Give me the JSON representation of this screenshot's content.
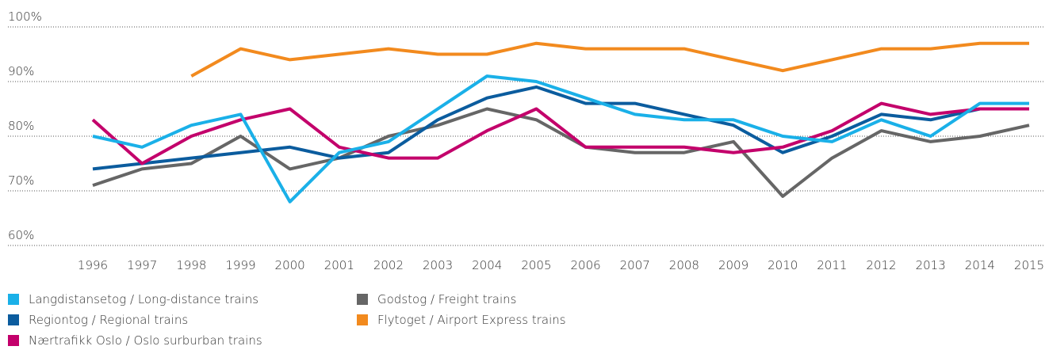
{
  "chart_data": {
    "type": "line",
    "x": [
      "1996",
      "1997",
      "1998",
      "1999",
      "2000",
      "2001",
      "2002",
      "2003",
      "2004",
      "2005",
      "2006",
      "2007",
      "2008",
      "2009",
      "2010",
      "2011",
      "2012",
      "2013",
      "2014",
      "2015"
    ],
    "series": [
      {
        "name": "Langdistansetog / Long-distance trains",
        "color": "#1ab0e8",
        "values": [
          80,
          78,
          82,
          84,
          68,
          77,
          79,
          85,
          91,
          90,
          87,
          84,
          83,
          83,
          80,
          79,
          83,
          80,
          86,
          86
        ]
      },
      {
        "name": "Regiontog / Regional trains",
        "color": "#0b5c9e",
        "values": [
          74,
          75,
          76,
          77,
          78,
          76,
          77,
          83,
          87,
          89,
          86,
          86,
          84,
          82,
          77,
          80,
          84,
          83,
          85,
          85
        ]
      },
      {
        "name": "Nærtrafikk Oslo / Oslo surburban trains",
        "color": "#c3006b",
        "values": [
          83,
          75,
          80,
          83,
          85,
          78,
          76,
          76,
          81,
          85,
          78,
          78,
          78,
          77,
          78,
          81,
          86,
          84,
          85,
          85
        ]
      },
      {
        "name": "Godstog / Freight trains",
        "color": "#666666",
        "values": [
          71,
          74,
          75,
          80,
          74,
          76,
          80,
          82,
          85,
          83,
          78,
          77,
          77,
          79,
          69,
          76,
          81,
          79,
          80,
          82
        ]
      },
      {
        "name": "Flytoget / Airport Express trains",
        "color": "#f28a1e",
        "values": [
          null,
          null,
          91,
          96,
          94,
          95,
          96,
          95,
          95,
          97,
          96,
          96,
          96,
          94,
          92,
          94,
          96,
          96,
          97,
          97
        ]
      }
    ],
    "ylim": [
      60,
      100
    ],
    "yticks": [
      {
        "value": 60,
        "label": "60%"
      },
      {
        "value": 70,
        "label": "70%"
      },
      {
        "value": 80,
        "label": "80%"
      },
      {
        "value": 90,
        "label": "90%"
      },
      {
        "value": 100,
        "label": "100%"
      }
    ],
    "grid": true
  }
}
